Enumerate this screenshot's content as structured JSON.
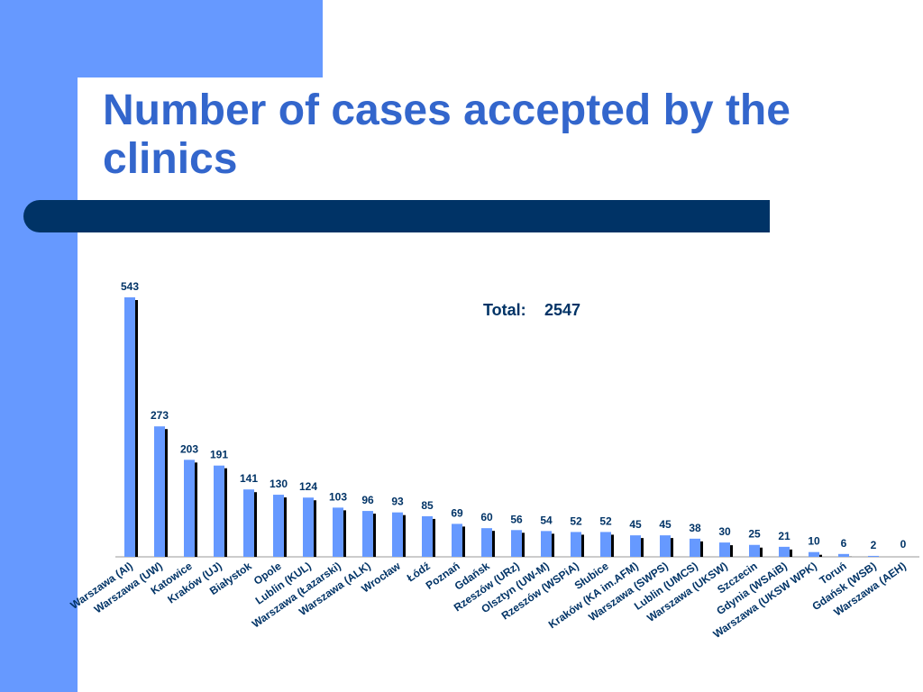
{
  "slide": {
    "title": "Number of cases accepted by the clinics",
    "colors": {
      "band": "#6699ff",
      "title": "#3366cc",
      "divider": "#003366",
      "bar": "#6699ff",
      "bar_shadow": "#000000",
      "label": "#003366"
    }
  },
  "chart_data": {
    "type": "bar",
    "title": "",
    "xlabel": "",
    "ylabel": "",
    "ylim": [
      0,
      543
    ],
    "grid": false,
    "legend": "none",
    "annotation": {
      "label": "Total:",
      "value": "2547"
    },
    "categories": [
      "Warszawa (AI)",
      "Warszawa (UW)",
      "Katowice",
      "Kraków (UJ)",
      "Białystok",
      "Opole",
      "Lublin (KUL)",
      "Warszawa (Łazarski)",
      "Warszawa (ALK)",
      "Wrocław",
      "Łódź",
      "Poznań",
      "Gdańsk",
      "Rzeszów (URz)",
      "Olsztyn (UW-M)",
      "Rzeszów (WSPiA)",
      "Słubice",
      "Kraków (KA im.AFM)",
      "Warszawa (SWPS)",
      "Lublin (UMCS)",
      "Warszawa (UKSW)",
      "Szczecin",
      "Gdynia (WSAiB)",
      "Warszawa (UKSW WPK)",
      "Toruń",
      "Gdańsk (WSB)",
      "Warszawa (AEH)"
    ],
    "values": [
      543,
      273,
      203,
      191,
      141,
      130,
      124,
      103,
      96,
      93,
      85,
      69,
      60,
      56,
      54,
      52,
      52,
      45,
      45,
      38,
      30,
      25,
      21,
      10,
      6,
      2,
      0
    ]
  }
}
